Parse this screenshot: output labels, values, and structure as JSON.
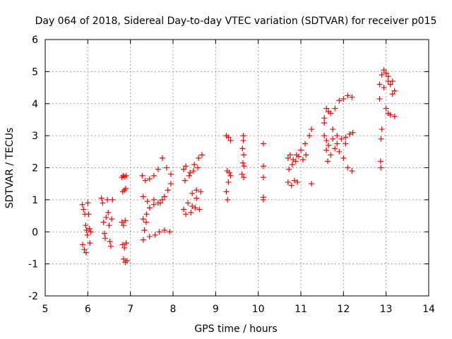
{
  "chart_data": {
    "type": "scatter",
    "title": "Day 064 of 2018, Sidereal Day-to-day VTEC variation (SDTVAR) for receiver p015",
    "xlabel": "GPS time / hours",
    "ylabel": "SDTVAR / TECUs",
    "xlim": [
      5,
      14
    ],
    "ylim": [
      -2,
      6
    ],
    "xticks": [
      5,
      6,
      7,
      8,
      9,
      10,
      11,
      12,
      13,
      14
    ],
    "yticks": [
      -2,
      -1,
      0,
      1,
      2,
      3,
      4,
      5,
      6
    ],
    "grid": true,
    "marker": "+",
    "color": "#ff0000",
    "series": [
      {
        "name": "p015",
        "points": [
          [
            5.87,
            0.85
          ],
          [
            5.9,
            0.7
          ],
          [
            5.93,
            0.55
          ],
          [
            5.95,
            0.2
          ],
          [
            5.97,
            0.05
          ],
          [
            5.99,
            -0.1
          ],
          [
            5.88,
            -0.4
          ],
          [
            5.92,
            -0.55
          ],
          [
            5.96,
            -0.65
          ],
          [
            6.0,
            0.9
          ],
          [
            6.02,
            0.55
          ],
          [
            6.04,
            0.1
          ],
          [
            6.05,
            -0.35
          ],
          [
            6.07,
            0.0
          ],
          [
            6.32,
            1.05
          ],
          [
            6.35,
            0.9
          ],
          [
            6.37,
            0.3
          ],
          [
            6.39,
            -0.05
          ],
          [
            6.41,
            -0.2
          ],
          [
            6.43,
            0.45
          ],
          [
            6.46,
            1.0
          ],
          [
            6.48,
            0.6
          ],
          [
            6.5,
            0.2
          ],
          [
            6.52,
            -0.3
          ],
          [
            6.54,
            -0.45
          ],
          [
            6.56,
            0.4
          ],
          [
            6.58,
            1.0
          ],
          [
            6.8,
            1.7
          ],
          [
            6.83,
            1.75
          ],
          [
            6.86,
            1.72
          ],
          [
            6.9,
            1.75
          ],
          [
            6.82,
            1.25
          ],
          [
            6.86,
            1.3
          ],
          [
            6.89,
            1.35
          ],
          [
            6.8,
            0.3
          ],
          [
            6.84,
            0.2
          ],
          [
            6.88,
            0.35
          ],
          [
            6.82,
            -0.4
          ],
          [
            6.86,
            -0.5
          ],
          [
            6.9,
            -0.35
          ],
          [
            6.84,
            -0.85
          ],
          [
            6.88,
            -0.95
          ],
          [
            6.92,
            -0.9
          ],
          [
            7.28,
            1.75
          ],
          [
            7.35,
            1.6
          ],
          [
            7.45,
            1.65
          ],
          [
            7.55,
            1.75
          ],
          [
            7.65,
            1.95
          ],
          [
            7.75,
            2.3
          ],
          [
            7.85,
            2.0
          ],
          [
            7.95,
            1.8
          ],
          [
            7.3,
            1.1
          ],
          [
            7.4,
            0.95
          ],
          [
            7.55,
            1.0
          ],
          [
            7.7,
            0.9
          ],
          [
            7.8,
            1.1
          ],
          [
            7.88,
            1.3
          ],
          [
            7.95,
            1.5
          ],
          [
            7.3,
            0.4
          ],
          [
            7.38,
            0.55
          ],
          [
            7.45,
            0.75
          ],
          [
            7.55,
            0.85
          ],
          [
            7.65,
            0.9
          ],
          [
            7.75,
            1.0
          ],
          [
            7.3,
            -0.25
          ],
          [
            7.45,
            -0.15
          ],
          [
            7.58,
            -0.1
          ],
          [
            7.68,
            0.0
          ],
          [
            7.8,
            0.05
          ],
          [
            7.92,
            0.0
          ],
          [
            7.33,
            0.05
          ],
          [
            7.37,
            0.3
          ],
          [
            8.25,
            1.95
          ],
          [
            8.3,
            2.05
          ],
          [
            8.4,
            1.85
          ],
          [
            8.5,
            2.1
          ],
          [
            8.6,
            2.3
          ],
          [
            8.68,
            2.4
          ],
          [
            8.28,
            1.6
          ],
          [
            8.38,
            1.75
          ],
          [
            8.48,
            1.9
          ],
          [
            8.58,
            2.0
          ],
          [
            8.25,
            0.7
          ],
          [
            8.35,
            0.9
          ],
          [
            8.45,
            0.8
          ],
          [
            8.55,
            1.05
          ],
          [
            8.65,
            1.25
          ],
          [
            8.3,
            0.55
          ],
          [
            8.42,
            0.6
          ],
          [
            8.52,
            0.75
          ],
          [
            8.62,
            0.7
          ],
          [
            8.45,
            1.2
          ],
          [
            8.55,
            1.3
          ],
          [
            9.25,
            3.0
          ],
          [
            9.3,
            2.95
          ],
          [
            9.35,
            2.85
          ],
          [
            9.27,
            1.9
          ],
          [
            9.32,
            1.85
          ],
          [
            9.35,
            1.75
          ],
          [
            9.3,
            1.55
          ],
          [
            9.25,
            1.25
          ],
          [
            9.28,
            1.0
          ],
          [
            9.65,
            3.0
          ],
          [
            9.65,
            2.85
          ],
          [
            9.63,
            2.6
          ],
          [
            9.66,
            2.4
          ],
          [
            9.64,
            2.15
          ],
          [
            9.67,
            2.05
          ],
          [
            9.62,
            1.8
          ],
          [
            9.66,
            1.7
          ],
          [
            10.12,
            2.75
          ],
          [
            10.12,
            2.05
          ],
          [
            10.12,
            1.7
          ],
          [
            10.12,
            1.08
          ],
          [
            10.12,
            1.0
          ],
          [
            10.7,
            2.3
          ],
          [
            10.75,
            2.4
          ],
          [
            10.82,
            2.25
          ],
          [
            10.9,
            2.4
          ],
          [
            11.0,
            2.55
          ],
          [
            11.1,
            2.75
          ],
          [
            11.2,
            3.0
          ],
          [
            11.25,
            3.2
          ],
          [
            10.72,
            1.95
          ],
          [
            10.8,
            2.1
          ],
          [
            10.88,
            2.2
          ],
          [
            10.95,
            2.35
          ],
          [
            11.05,
            2.25
          ],
          [
            11.12,
            2.4
          ],
          [
            10.7,
            1.55
          ],
          [
            10.78,
            1.45
          ],
          [
            10.85,
            1.6
          ],
          [
            10.92,
            1.55
          ],
          [
            11.25,
            1.5
          ],
          [
            11.55,
            3.55
          ],
          [
            11.6,
            3.85
          ],
          [
            11.65,
            3.75
          ],
          [
            11.7,
            3.7
          ],
          [
            11.8,
            3.85
          ],
          [
            11.9,
            4.1
          ],
          [
            12.0,
            4.15
          ],
          [
            12.1,
            4.25
          ],
          [
            12.2,
            4.2
          ],
          [
            11.55,
            3.0
          ],
          [
            11.6,
            2.85
          ],
          [
            11.65,
            2.7
          ],
          [
            11.75,
            2.9
          ],
          [
            11.85,
            2.75
          ],
          [
            11.95,
            2.9
          ],
          [
            12.05,
            2.95
          ],
          [
            12.15,
            3.05
          ],
          [
            12.22,
            3.1
          ],
          [
            11.6,
            2.55
          ],
          [
            11.7,
            2.4
          ],
          [
            11.8,
            2.6
          ],
          [
            11.9,
            2.5
          ],
          [
            12.0,
            2.3
          ],
          [
            12.1,
            2.0
          ],
          [
            12.2,
            1.9
          ],
          [
            11.55,
            3.4
          ],
          [
            11.63,
            2.2
          ],
          [
            11.75,
            3.2
          ],
          [
            12.05,
            2.75
          ],
          [
            11.85,
            3.0
          ],
          [
            12.85,
            4.6
          ],
          [
            12.9,
            4.9
          ],
          [
            12.95,
            5.05
          ],
          [
            13.0,
            4.95
          ],
          [
            13.05,
            4.7
          ],
          [
            13.1,
            4.6
          ],
          [
            13.15,
            4.7
          ],
          [
            13.2,
            4.4
          ],
          [
            12.95,
            4.5
          ],
          [
            13.05,
            4.85
          ],
          [
            13.15,
            4.3
          ],
          [
            13.0,
            3.85
          ],
          [
            13.05,
            3.7
          ],
          [
            13.1,
            3.65
          ],
          [
            13.2,
            3.6
          ],
          [
            12.9,
            3.2
          ],
          [
            12.88,
            2.9
          ],
          [
            12.87,
            2.2
          ],
          [
            12.88,
            2.0
          ],
          [
            12.85,
            4.15
          ]
        ]
      }
    ]
  }
}
